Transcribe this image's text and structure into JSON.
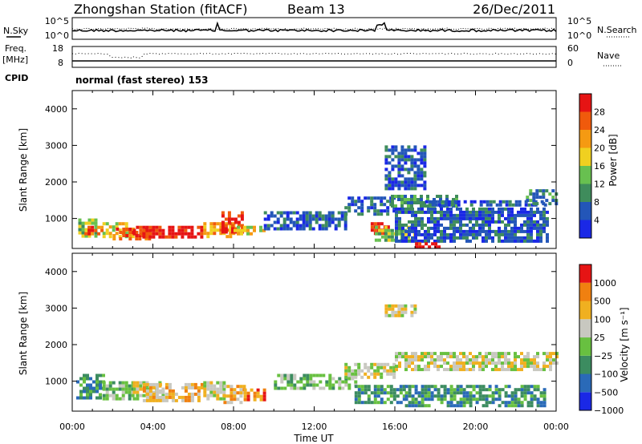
{
  "header": {
    "station": "Zhongshan Station (fitACF)",
    "beam": "Beam 13",
    "date": "26/Dec/2011"
  },
  "noise_panel": {
    "left_label": "N.Sky",
    "right_label": "N.Search",
    "left_ticks": [
      "10^5",
      "10^0"
    ],
    "right_ticks": [
      "10^5",
      "10^0"
    ]
  },
  "freq_panel": {
    "left_label_top": "Freq.",
    "left_label_bottom": "[MHz]",
    "right_label": "Nave",
    "left_ticks": [
      "18",
      "8"
    ],
    "right_ticks": [
      "60",
      "0"
    ]
  },
  "cpid": {
    "label": "CPID",
    "text": "normal (fast stereo) 153"
  },
  "chart_data": [
    {
      "type": "heatmap",
      "name": "power",
      "ylabel": "Slant Range [km]",
      "ylim": [
        180,
        4500
      ],
      "yticks": [
        "1000",
        "2000",
        "3000",
        "4000"
      ],
      "xlim": [
        0,
        24
      ],
      "colorbar": {
        "label": "Power [dB]",
        "ticks": [
          "4",
          "8",
          "12",
          "16",
          "20",
          "24",
          "28"
        ],
        "colors": [
          "#1a28e6",
          "#2356b8",
          "#3f8c5c",
          "#68c050",
          "#f0d020",
          "#f59a12",
          "#f05a0c",
          "#e61414"
        ]
      },
      "regions": [
        {
          "x": [
            0.3,
            1.2
          ],
          "y": [
            500,
            1000
          ],
          "level": 3
        },
        {
          "x": [
            0.6,
            1.5
          ],
          "y": [
            550,
            800
          ],
          "level": 6
        },
        {
          "x": [
            1.5,
            3.0
          ],
          "y": [
            500,
            900
          ],
          "level": 4
        },
        {
          "x": [
            2.0,
            4.0
          ],
          "y": [
            450,
            750
          ],
          "level": 6
        },
        {
          "x": [
            3.0,
            6.5
          ],
          "y": [
            450,
            800
          ],
          "level": 7
        },
        {
          "x": [
            6.5,
            8.0
          ],
          "y": [
            500,
            900
          ],
          "level": 5
        },
        {
          "x": [
            7.4,
            8.4
          ],
          "y": [
            600,
            1200
          ],
          "level": 7
        },
        {
          "x": [
            8.0,
            9.5
          ],
          "y": [
            550,
            800
          ],
          "level": 4
        },
        {
          "x": [
            9.5,
            13.5
          ],
          "y": [
            700,
            1200
          ],
          "level": 1
        },
        {
          "x": [
            13.5,
            16.0
          ],
          "y": [
            1100,
            1600
          ],
          "level": 1
        },
        {
          "x": [
            14.8,
            15.6
          ],
          "y": [
            600,
            900
          ],
          "level": 7
        },
        {
          "x": [
            15.0,
            17.0
          ],
          "y": [
            400,
            800
          ],
          "level": 3
        },
        {
          "x": [
            15.8,
            19.0
          ],
          "y": [
            1350,
            1650
          ],
          "level": 2
        },
        {
          "x": [
            17.5,
            23.5
          ],
          "y": [
            1400,
            1500
          ],
          "level": 1
        },
        {
          "x": [
            16.0,
            23.5
          ],
          "y": [
            400,
            1300
          ],
          "level": 1
        },
        {
          "x": [
            22.5,
            24.0
          ],
          "y": [
            1400,
            1800
          ],
          "level": 2
        },
        {
          "x": [
            15.5,
            17.5
          ],
          "y": [
            1800,
            3000
          ],
          "level": 1
        },
        {
          "x": [
            17.0,
            18.2
          ],
          "y": [
            250,
            350
          ],
          "level": 7
        }
      ]
    },
    {
      "type": "heatmap",
      "name": "velocity",
      "ylabel": "Slant Range [km]",
      "ylim": [
        180,
        4500
      ],
      "yticks": [
        "1000",
        "2000",
        "3000",
        "4000"
      ],
      "xlim": [
        0,
        24
      ],
      "xticks": [
        "00:00",
        "04:00",
        "08:00",
        "12:00",
        "16:00",
        "20:00",
        "00:00"
      ],
      "xlabel": "Time UT",
      "colorbar": {
        "label": "Velocity [m s⁻¹]",
        "ticks": [
          "1000",
          "500",
          "100",
          "25",
          "−25",
          "−100",
          "−500",
          "−1000"
        ],
        "colors": [
          "#1a28e6",
          "#2a6ab8",
          "#3c8c60",
          "#68c040",
          "#c8c8c0",
          "#f0b020",
          "#f08010",
          "#e61414"
        ]
      },
      "regions": [
        {
          "x": [
            0.2,
            1.5
          ],
          "y": [
            500,
            1200
          ],
          "level": 2
        },
        {
          "x": [
            1.5,
            3.0
          ],
          "y": [
            500,
            1000
          ],
          "level": 3
        },
        {
          "x": [
            3.0,
            4.5
          ],
          "y": [
            500,
            1000
          ],
          "level": 4
        },
        {
          "x": [
            3.5,
            6.5
          ],
          "y": [
            450,
            950
          ],
          "level": 5
        },
        {
          "x": [
            6.5,
            7.5
          ],
          "y": [
            500,
            1000
          ],
          "level": 4
        },
        {
          "x": [
            7.5,
            8.6
          ],
          "y": [
            450,
            900
          ],
          "level": 5
        },
        {
          "x": [
            8.5,
            9.5
          ],
          "y": [
            500,
            800
          ],
          "level": 6
        },
        {
          "x": [
            10.0,
            14.0
          ],
          "y": [
            800,
            1200
          ],
          "level": 3
        },
        {
          "x": [
            13.5,
            16.0
          ],
          "y": [
            1100,
            1500
          ],
          "level": 4
        },
        {
          "x": [
            14.0,
            16.5
          ],
          "y": [
            400,
            900
          ],
          "level": 2
        },
        {
          "x": [
            16.0,
            24.0
          ],
          "y": [
            1350,
            1800
          ],
          "level": 4
        },
        {
          "x": [
            16.5,
            23.5
          ],
          "y": [
            300,
            900
          ],
          "level": 2
        },
        {
          "x": [
            15.5,
            17.0
          ],
          "y": [
            2800,
            3100
          ],
          "level": 4
        }
      ]
    }
  ]
}
